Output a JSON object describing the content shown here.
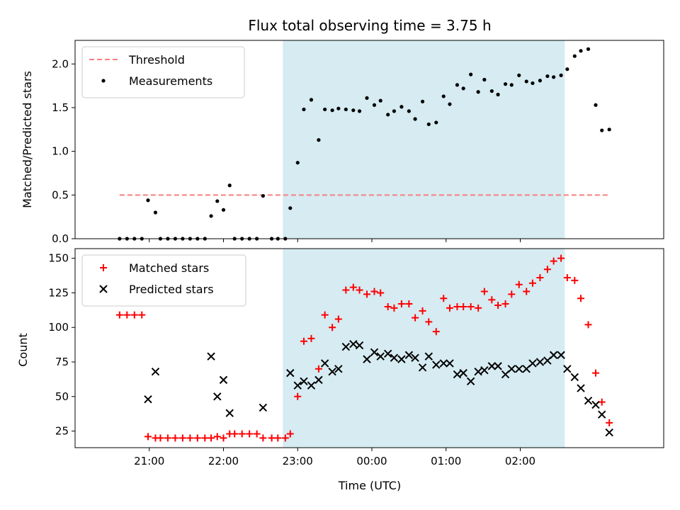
{
  "chart_data": [
    {
      "type": "scatter",
      "title": "Flux total observing time = 3.75 h",
      "ylabel": "Matched/Predicted stars",
      "xlabel": "",
      "ylim": [
        0,
        2.27
      ],
      "yticks": [
        "0.0",
        "0.5",
        "1.0",
        "1.5",
        "2.0"
      ],
      "legend_placement": "top-left",
      "threshold": {
        "name": "Threshold",
        "value": 0.5,
        "color": "#f77f7f",
        "style": "dashed"
      },
      "shaded_span": {
        "start": "22:48",
        "end": "02:36",
        "color": "#add8e6"
      },
      "series": [
        {
          "name": "Measurements",
          "color": "#000000",
          "marker": "dot",
          "points": [
            [
              "20:36",
              0
            ],
            [
              "20:42",
              0
            ],
            [
              "20:48",
              0
            ],
            [
              "20:54",
              0
            ],
            [
              "20:59",
              0.44
            ],
            [
              "21:05",
              0.3
            ],
            [
              "21:09",
              0
            ],
            [
              "21:15",
              0
            ],
            [
              "21:21",
              0
            ],
            [
              "21:27",
              0
            ],
            [
              "21:33",
              0
            ],
            [
              "21:39",
              0
            ],
            [
              "21:45",
              0
            ],
            [
              "21:50",
              0.26
            ],
            [
              "21:55",
              0.43
            ],
            [
              "22:00",
              0.33
            ],
            [
              "22:05",
              0.61
            ],
            [
              "22:09",
              0
            ],
            [
              "22:15",
              0
            ],
            [
              "22:21",
              0
            ],
            [
              "22:27",
              0
            ],
            [
              "22:32",
              0.49
            ],
            [
              "22:39",
              0
            ],
            [
              "22:44",
              0
            ],
            [
              "22:50",
              0
            ],
            [
              "22:54",
              0.35
            ],
            [
              "23:00",
              0.87
            ],
            [
              "23:05",
              1.48
            ],
            [
              "23:11",
              1.59
            ],
            [
              "23:17",
              1.13
            ],
            [
              "23:22",
              1.48
            ],
            [
              "23:28",
              1.47
            ],
            [
              "23:33",
              1.49
            ],
            [
              "23:39",
              1.48
            ],
            [
              "23:45",
              1.47
            ],
            [
              "23:50",
              1.46
            ],
            [
              "23:56",
              1.61
            ],
            [
              "00:02",
              1.53
            ],
            [
              "00:07",
              1.58
            ],
            [
              "00:13",
              1.42
            ],
            [
              "00:18",
              1.46
            ],
            [
              "00:24",
              1.51
            ],
            [
              "00:30",
              1.46
            ],
            [
              "00:35",
              1.37
            ],
            [
              "00:41",
              1.57
            ],
            [
              "00:46",
              1.31
            ],
            [
              "00:52",
              1.33
            ],
            [
              "00:58",
              1.63
            ],
            [
              "01:03",
              1.54
            ],
            [
              "01:09",
              1.76
            ],
            [
              "01:14",
              1.72
            ],
            [
              "01:20",
              1.88
            ],
            [
              "01:26",
              1.68
            ],
            [
              "01:31",
              1.82
            ],
            [
              "01:37",
              1.69
            ],
            [
              "01:42",
              1.65
            ],
            [
              "01:48",
              1.77
            ],
            [
              "01:53",
              1.76
            ],
            [
              "01:59",
              1.87
            ],
            [
              "02:05",
              1.8
            ],
            [
              "02:10",
              1.78
            ],
            [
              "02:16",
              1.81
            ],
            [
              "02:22",
              1.86
            ],
            [
              "02:27",
              1.85
            ],
            [
              "02:33",
              1.87
            ],
            [
              "02:38",
              1.94
            ],
            [
              "02:44",
              2.09
            ],
            [
              "02:49",
              2.15
            ],
            [
              "02:55",
              2.17
            ],
            [
              "03:01",
              1.53
            ],
            [
              "03:06",
              1.24
            ],
            [
              "03:12",
              1.25
            ]
          ]
        }
      ]
    },
    {
      "type": "scatter",
      "title": "",
      "ylabel": "Count",
      "xlabel": "Time (UTC)",
      "ylim": [
        13,
        157
      ],
      "yticks": [
        "25",
        "50",
        "75",
        "100",
        "125",
        "150"
      ],
      "xticks": [
        "21:00",
        "22:00",
        "23:00",
        "00:00",
        "01:00",
        "02:00"
      ],
      "legend_placement": "top-left",
      "shaded_span": {
        "start": "22:48",
        "end": "02:36",
        "color": "#add8e6"
      },
      "series": [
        {
          "name": "Matched stars",
          "color": "#ff0000",
          "marker": "plus",
          "points": [
            [
              "20:36",
              109
            ],
            [
              "20:42",
              109
            ],
            [
              "20:48",
              109
            ],
            [
              "20:54",
              109
            ],
            [
              "20:59",
              21
            ],
            [
              "21:05",
              20
            ],
            [
              "21:09",
              20
            ],
            [
              "21:15",
              20
            ],
            [
              "21:21",
              20
            ],
            [
              "21:27",
              20
            ],
            [
              "21:33",
              20
            ],
            [
              "21:39",
              20
            ],
            [
              "21:45",
              20
            ],
            [
              "21:50",
              20
            ],
            [
              "21:55",
              21
            ],
            [
              "22:00",
              20
            ],
            [
              "22:05",
              23
            ],
            [
              "22:09",
              23
            ],
            [
              "22:15",
              23
            ],
            [
              "22:21",
              23
            ],
            [
              "22:27",
              23
            ],
            [
              "22:32",
              20
            ],
            [
              "22:39",
              20
            ],
            [
              "22:44",
              20
            ],
            [
              "22:50",
              20
            ],
            [
              "22:54",
              23
            ],
            [
              "23:00",
              50
            ],
            [
              "23:05",
              90
            ],
            [
              "23:11",
              92
            ],
            [
              "23:17",
              70
            ],
            [
              "23:22",
              109
            ],
            [
              "23:28",
              100
            ],
            [
              "23:33",
              106
            ],
            [
              "23:39",
              127
            ],
            [
              "23:45",
              129
            ],
            [
              "23:50",
              127
            ],
            [
              "23:56",
              124
            ],
            [
              "00:02",
              126
            ],
            [
              "00:07",
              125
            ],
            [
              "00:13",
              115
            ],
            [
              "00:18",
              114
            ],
            [
              "00:24",
              117
            ],
            [
              "00:30",
              117
            ],
            [
              "00:35",
              107
            ],
            [
              "00:41",
              112
            ],
            [
              "00:46",
              104
            ],
            [
              "00:52",
              97
            ],
            [
              "00:58",
              121
            ],
            [
              "01:03",
              114
            ],
            [
              "01:09",
              115
            ],
            [
              "01:14",
              115
            ],
            [
              "01:20",
              115
            ],
            [
              "01:26",
              114
            ],
            [
              "01:31",
              126
            ],
            [
              "01:37",
              120
            ],
            [
              "01:42",
              116
            ],
            [
              "01:48",
              117
            ],
            [
              "01:53",
              124
            ],
            [
              "01:59",
              131
            ],
            [
              "02:05",
              126
            ],
            [
              "02:10",
              132
            ],
            [
              "02:16",
              136
            ],
            [
              "02:22",
              142
            ],
            [
              "02:27",
              148
            ],
            [
              "02:33",
              150
            ],
            [
              "02:38",
              136
            ],
            [
              "02:44",
              134
            ],
            [
              "02:49",
              121
            ],
            [
              "02:55",
              102
            ],
            [
              "03:01",
              67
            ],
            [
              "03:06",
              46
            ],
            [
              "03:12",
              31
            ]
          ]
        },
        {
          "name": "Predicted stars",
          "color": "#000000",
          "marker": "x",
          "points": [
            [
              "20:59",
              48
            ],
            [
              "21:05",
              68
            ],
            [
              "21:50",
              79
            ],
            [
              "21:55",
              50
            ],
            [
              "22:00",
              62
            ],
            [
              "22:05",
              38
            ],
            [
              "22:32",
              42
            ],
            [
              "22:54",
              67
            ],
            [
              "23:00",
              58
            ],
            [
              "23:05",
              61
            ],
            [
              "23:11",
              58
            ],
            [
              "23:17",
              62
            ],
            [
              "23:22",
              74
            ],
            [
              "23:28",
              68
            ],
            [
              "23:33",
              70
            ],
            [
              "23:39",
              86
            ],
            [
              "23:45",
              88
            ],
            [
              "23:50",
              87
            ],
            [
              "23:56",
              77
            ],
            [
              "00:02",
              82
            ],
            [
              "00:07",
              79
            ],
            [
              "00:13",
              81
            ],
            [
              "00:18",
              78
            ],
            [
              "00:24",
              77
            ],
            [
              "00:30",
              80
            ],
            [
              "00:35",
              78
            ],
            [
              "00:41",
              71
            ],
            [
              "00:46",
              79
            ],
            [
              "00:52",
              73
            ],
            [
              "00:58",
              74
            ],
            [
              "01:03",
              74
            ],
            [
              "01:09",
              66
            ],
            [
              "01:14",
              67
            ],
            [
              "01:20",
              61
            ],
            [
              "01:26",
              68
            ],
            [
              "01:31",
              69
            ],
            [
              "01:37",
              72
            ],
            [
              "01:42",
              72
            ],
            [
              "01:48",
              66
            ],
            [
              "01:53",
              70
            ],
            [
              "01:59",
              70
            ],
            [
              "02:05",
              70
            ],
            [
              "02:10",
              74
            ],
            [
              "02:16",
              75
            ],
            [
              "02:22",
              76
            ],
            [
              "02:27",
              80
            ],
            [
              "02:33",
              80
            ],
            [
              "02:38",
              70
            ],
            [
              "02:44",
              64
            ],
            [
              "02:49",
              56
            ],
            [
              "02:55",
              47
            ],
            [
              "03:01",
              44
            ],
            [
              "03:06",
              37
            ],
            [
              "03:12",
              24
            ]
          ]
        }
      ]
    }
  ]
}
